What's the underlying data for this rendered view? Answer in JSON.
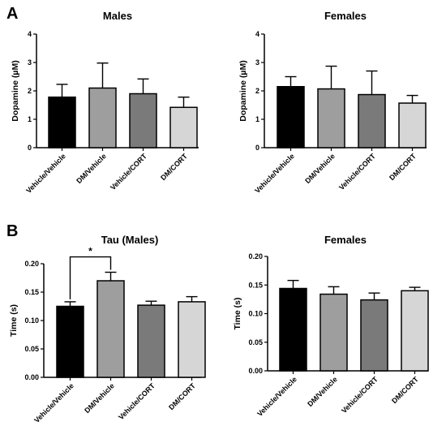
{
  "panel_labels": [
    "A",
    "B"
  ],
  "chart_data": [
    {
      "type": "bar",
      "panel": "A",
      "title": "Males",
      "ylabel": "Dopamine (µM)",
      "xlabel": "",
      "categories": [
        "Vehicle/Vehicle",
        "DM/Vehicle",
        "Vehicle/CORT",
        "DM/CORT"
      ],
      "values": [
        1.78,
        2.1,
        1.9,
        1.42
      ],
      "errors": [
        0.45,
        0.88,
        0.52,
        0.36
      ],
      "colors": [
        "#000000",
        "#9e9e9e",
        "#7a7a7a",
        "#d6d6d6"
      ],
      "ylim": [
        0,
        4
      ],
      "yticks": [
        "0",
        "1",
        "2",
        "3",
        "4"
      ]
    },
    {
      "type": "bar",
      "panel": "A",
      "title": "Females",
      "ylabel": "Dopamine (µM)",
      "xlabel": "",
      "categories": [
        "Vehicle/Vehicle",
        "DM/Vehicle",
        "Vehicle/CORT",
        "DM/CORT"
      ],
      "values": [
        2.15,
        2.07,
        1.87,
        1.57
      ],
      "errors": [
        0.35,
        0.8,
        0.83,
        0.27
      ],
      "colors": [
        "#000000",
        "#9e9e9e",
        "#7a7a7a",
        "#d6d6d6"
      ],
      "ylim": [
        0,
        4
      ],
      "yticks": [
        "0",
        "1",
        "2",
        "3",
        "4"
      ]
    },
    {
      "type": "bar",
      "panel": "B",
      "title": "Tau (Males)",
      "ylabel": "Time (s)",
      "xlabel": "",
      "categories": [
        "Vehicle/Vehicle",
        "DM/Vehicle",
        "Vehicle/CORT",
        "DM/CORT"
      ],
      "values": [
        0.125,
        0.17,
        0.127,
        0.133
      ],
      "errors": [
        0.008,
        0.015,
        0.007,
        0.009
      ],
      "colors": [
        "#000000",
        "#9e9e9e",
        "#7a7a7a",
        "#d6d6d6"
      ],
      "ylim": [
        0,
        0.2
      ],
      "yticks": [
        "0.00",
        "0.05",
        "0.10",
        "0.15",
        "0.20"
      ],
      "significance": {
        "from": 0,
        "to": 1,
        "label": "*"
      }
    },
    {
      "type": "bar",
      "panel": "B",
      "title": "Females",
      "ylabel": "Time (s)",
      "xlabel": "",
      "categories": [
        "Vehicle/Vehicle",
        "DM/Vehicle",
        "Vehicle/CORT",
        "DM/CORT"
      ],
      "values": [
        0.144,
        0.134,
        0.124,
        0.14
      ],
      "errors": [
        0.014,
        0.013,
        0.012,
        0.006
      ],
      "colors": [
        "#000000",
        "#9e9e9e",
        "#7a7a7a",
        "#d6d6d6"
      ],
      "ylim": [
        0,
        0.2
      ],
      "yticks": [
        "0.00",
        "0.05",
        "0.10",
        "0.15",
        "0.20"
      ]
    }
  ]
}
